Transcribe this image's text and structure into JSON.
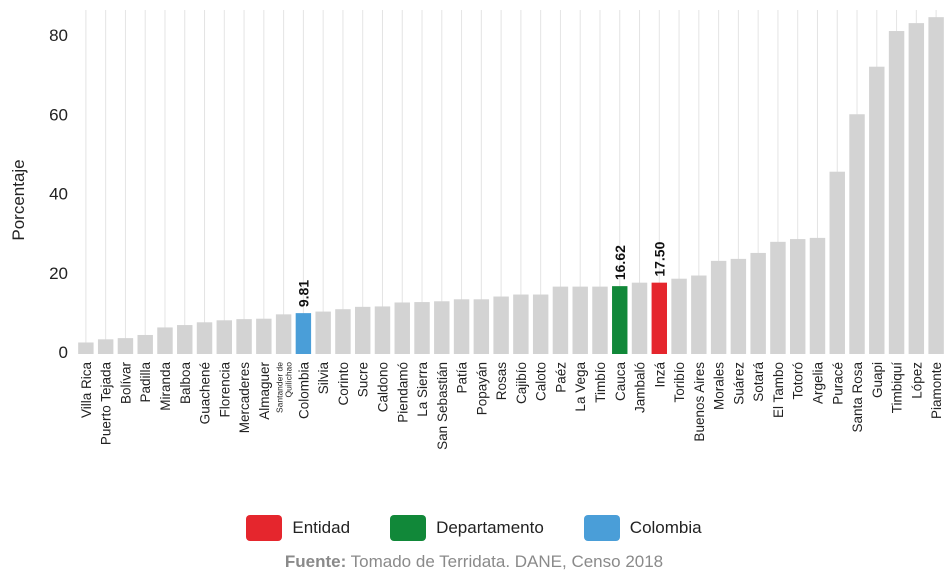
{
  "chart_data": {
    "type": "bar",
    "ylabel": "Porcentaje",
    "ylim": [
      0,
      85
    ],
    "yticks": [
      0,
      20,
      40,
      60,
      80
    ],
    "grid": "vertical",
    "categories": [
      "Villa Rica",
      "Puerto Tejada",
      "Bolívar",
      "Padilla",
      "Miranda",
      "Balboa",
      "Guachené",
      "Florencia",
      "Mercaderes",
      "Almaguer",
      "Santander de Quilichao",
      "Colombia",
      "Silvia",
      "Corinto",
      "Sucre",
      "Caldono",
      "Piendamó",
      "La Sierra",
      "San Sebastián",
      "Patía",
      "Popayán",
      "Rosas",
      "Cajibío",
      "Caloto",
      "Paéz",
      "La Vega",
      "Timbío",
      "Cauca",
      "Jambaló",
      "Inzá",
      "Toribío",
      "Buenos Aires",
      "Morales",
      "Suárez",
      "Sotará",
      "El Tambo",
      "Totoró",
      "Argelia",
      "Puracé",
      "Santa Rosa",
      "Guapi",
      "Timbiquí",
      "López",
      "Piamonte"
    ],
    "values": [
      2.4,
      3.2,
      3.5,
      4.3,
      6.2,
      6.8,
      7.5,
      8.0,
      8.3,
      8.4,
      9.5,
      9.81,
      10.2,
      10.8,
      11.4,
      11.5,
      12.5,
      12.6,
      12.8,
      13.3,
      13.3,
      14.0,
      14.5,
      14.5,
      16.5,
      16.5,
      16.5,
      16.62,
      17.5,
      17.5,
      18.5,
      19.3,
      23.0,
      23.5,
      25.0,
      27.8,
      28.5,
      28.8,
      45.5,
      60.0,
      72.0,
      81.0,
      83.0,
      84.5
    ],
    "highlights": [
      {
        "category": "Colombia",
        "group": "Colombia",
        "label": "9.81"
      },
      {
        "category": "Cauca",
        "group": "Departamento",
        "label": "16.62"
      },
      {
        "category": "Inzá",
        "group": "Entidad",
        "label": "17.50"
      }
    ],
    "legend": [
      {
        "name": "Entidad",
        "color": "#e5262d"
      },
      {
        "name": "Departamento",
        "color": "#118839"
      },
      {
        "name": "Colombia",
        "color": "#4a9ed8"
      }
    ],
    "default_color": "#d3d3d3",
    "legend_position": "bottom"
  },
  "source": {
    "label": "Fuente:",
    "text": "Tomado de Terridata. DANE, Censo 2018"
  }
}
